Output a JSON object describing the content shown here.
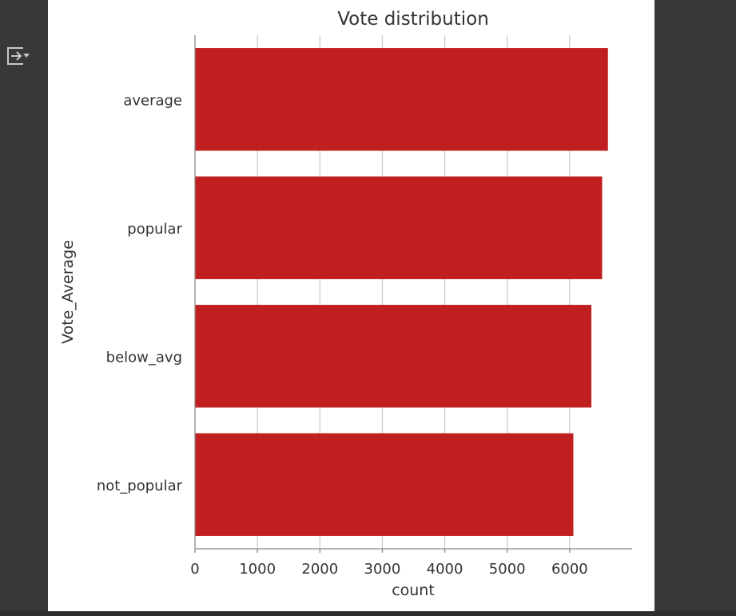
{
  "output_toggle": {
    "icon": "output-toggle-icon"
  },
  "chart_data": {
    "type": "bar",
    "orientation": "horizontal",
    "title": "Vote distribution",
    "xlabel": "count",
    "ylabel": "Vote_Average",
    "categories": [
      "average",
      "popular",
      "below_avg",
      "not_popular"
    ],
    "values": [
      6613,
      6520,
      6348,
      6059
    ],
    "xlim": [
      0,
      7000
    ],
    "xticks": [
      0,
      1000,
      2000,
      3000,
      4000,
      5000,
      6000
    ],
    "grid": "vertical",
    "legend": "none",
    "colors": {
      "bar": "#bf1f1f",
      "grid": "#cccccc",
      "axis": "#8a8a8a",
      "text": "#333333"
    }
  }
}
